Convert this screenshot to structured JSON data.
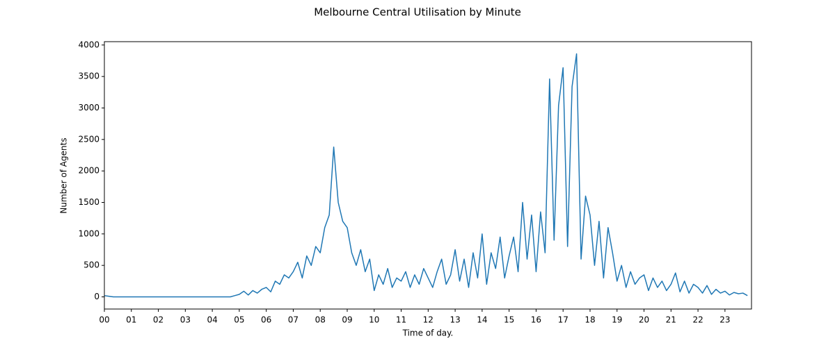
{
  "chart_data": {
    "type": "line",
    "title": "Melbourne Central Utilisation by Minute",
    "x_label": "Time of day.",
    "y_label": "Number of Agents",
    "x": [
      0,
      10,
      20,
      30,
      40,
      50,
      60,
      70,
      80,
      90,
      100,
      110,
      120,
      130,
      140,
      150,
      160,
      170,
      180,
      190,
      200,
      210,
      220,
      230,
      240,
      250,
      260,
      270,
      280,
      290,
      300,
      310,
      320,
      330,
      340,
      350,
      360,
      370,
      380,
      390,
      400,
      410,
      420,
      430,
      440,
      450,
      460,
      470,
      480,
      490,
      500,
      510,
      520,
      530,
      540,
      550,
      560,
      570,
      580,
      590,
      600,
      610,
      620,
      630,
      640,
      650,
      660,
      670,
      680,
      690,
      700,
      710,
      720,
      730,
      740,
      750,
      760,
      770,
      780,
      790,
      800,
      810,
      820,
      830,
      840,
      850,
      860,
      870,
      880,
      890,
      900,
      910,
      920,
      930,
      940,
      950,
      960,
      970,
      980,
      990,
      1000,
      1010,
      1020,
      1030,
      1040,
      1050,
      1060,
      1070,
      1080,
      1090,
      1100,
      1110,
      1120,
      1130,
      1140,
      1150,
      1160,
      1170,
      1180,
      1190,
      1200,
      1210,
      1220,
      1230,
      1240,
      1250,
      1260,
      1270,
      1280,
      1290,
      1300,
      1310,
      1320,
      1330,
      1340,
      1350,
      1360,
      1370,
      1380,
      1390,
      1400,
      1410,
      1420,
      1430
    ],
    "series": [
      {
        "name": "Agents",
        "color": "#1f77b4",
        "values": [
          20,
          10,
          0,
          0,
          0,
          0,
          0,
          0,
          0,
          0,
          0,
          0,
          0,
          0,
          0,
          0,
          0,
          0,
          0,
          0,
          0,
          0,
          0,
          0,
          0,
          0,
          0,
          0,
          0,
          20,
          40,
          90,
          30,
          100,
          60,
          120,
          150,
          80,
          250,
          200,
          350,
          300,
          400,
          550,
          300,
          650,
          500,
          800,
          700,
          1100,
          1300,
          2380,
          1500,
          1200,
          1100,
          700,
          500,
          750,
          400,
          600,
          100,
          350,
          200,
          450,
          150,
          300,
          250,
          400,
          150,
          350,
          200,
          450,
          300,
          150,
          400,
          600,
          200,
          350,
          750,
          250,
          600,
          150,
          700,
          300,
          1000,
          200,
          700,
          450,
          950,
          300,
          650,
          950,
          400,
          1500,
          600,
          1300,
          400,
          1350,
          700,
          3460,
          900,
          3040,
          3640,
          800,
          3340,
          3860,
          600,
          1600,
          1300,
          500,
          1200,
          300,
          1100,
          700,
          250,
          500,
          150,
          400,
          200,
          300,
          350,
          100,
          300,
          150,
          250,
          100,
          200,
          380,
          80,
          250,
          60,
          200,
          150,
          60,
          180,
          40,
          120,
          60,
          90,
          30,
          70,
          50,
          60,
          20
        ]
      }
    ],
    "xlim": [
      0,
      1439
    ],
    "ylim": [
      -193,
      4053
    ],
    "xticks": [
      {
        "value": 0,
        "label": "00"
      },
      {
        "value": 60,
        "label": "01"
      },
      {
        "value": 120,
        "label": "02"
      },
      {
        "value": 180,
        "label": "03"
      },
      {
        "value": 240,
        "label": "04"
      },
      {
        "value": 300,
        "label": "05"
      },
      {
        "value": 360,
        "label": "06"
      },
      {
        "value": 420,
        "label": "07"
      },
      {
        "value": 480,
        "label": "08"
      },
      {
        "value": 540,
        "label": "09"
      },
      {
        "value": 600,
        "label": "10"
      },
      {
        "value": 660,
        "label": "11"
      },
      {
        "value": 720,
        "label": "12"
      },
      {
        "value": 780,
        "label": "13"
      },
      {
        "value": 840,
        "label": "14"
      },
      {
        "value": 900,
        "label": "15"
      },
      {
        "value": 960,
        "label": "16"
      },
      {
        "value": 1020,
        "label": "17"
      },
      {
        "value": 1080,
        "label": "18"
      },
      {
        "value": 1140,
        "label": "19"
      },
      {
        "value": 1200,
        "label": "20"
      },
      {
        "value": 1260,
        "label": "21"
      },
      {
        "value": 1320,
        "label": "22"
      },
      {
        "value": 1380,
        "label": "23"
      }
    ],
    "yticks": [
      0,
      500,
      1000,
      1500,
      2000,
      2500,
      3000,
      3500,
      4000
    ]
  }
}
